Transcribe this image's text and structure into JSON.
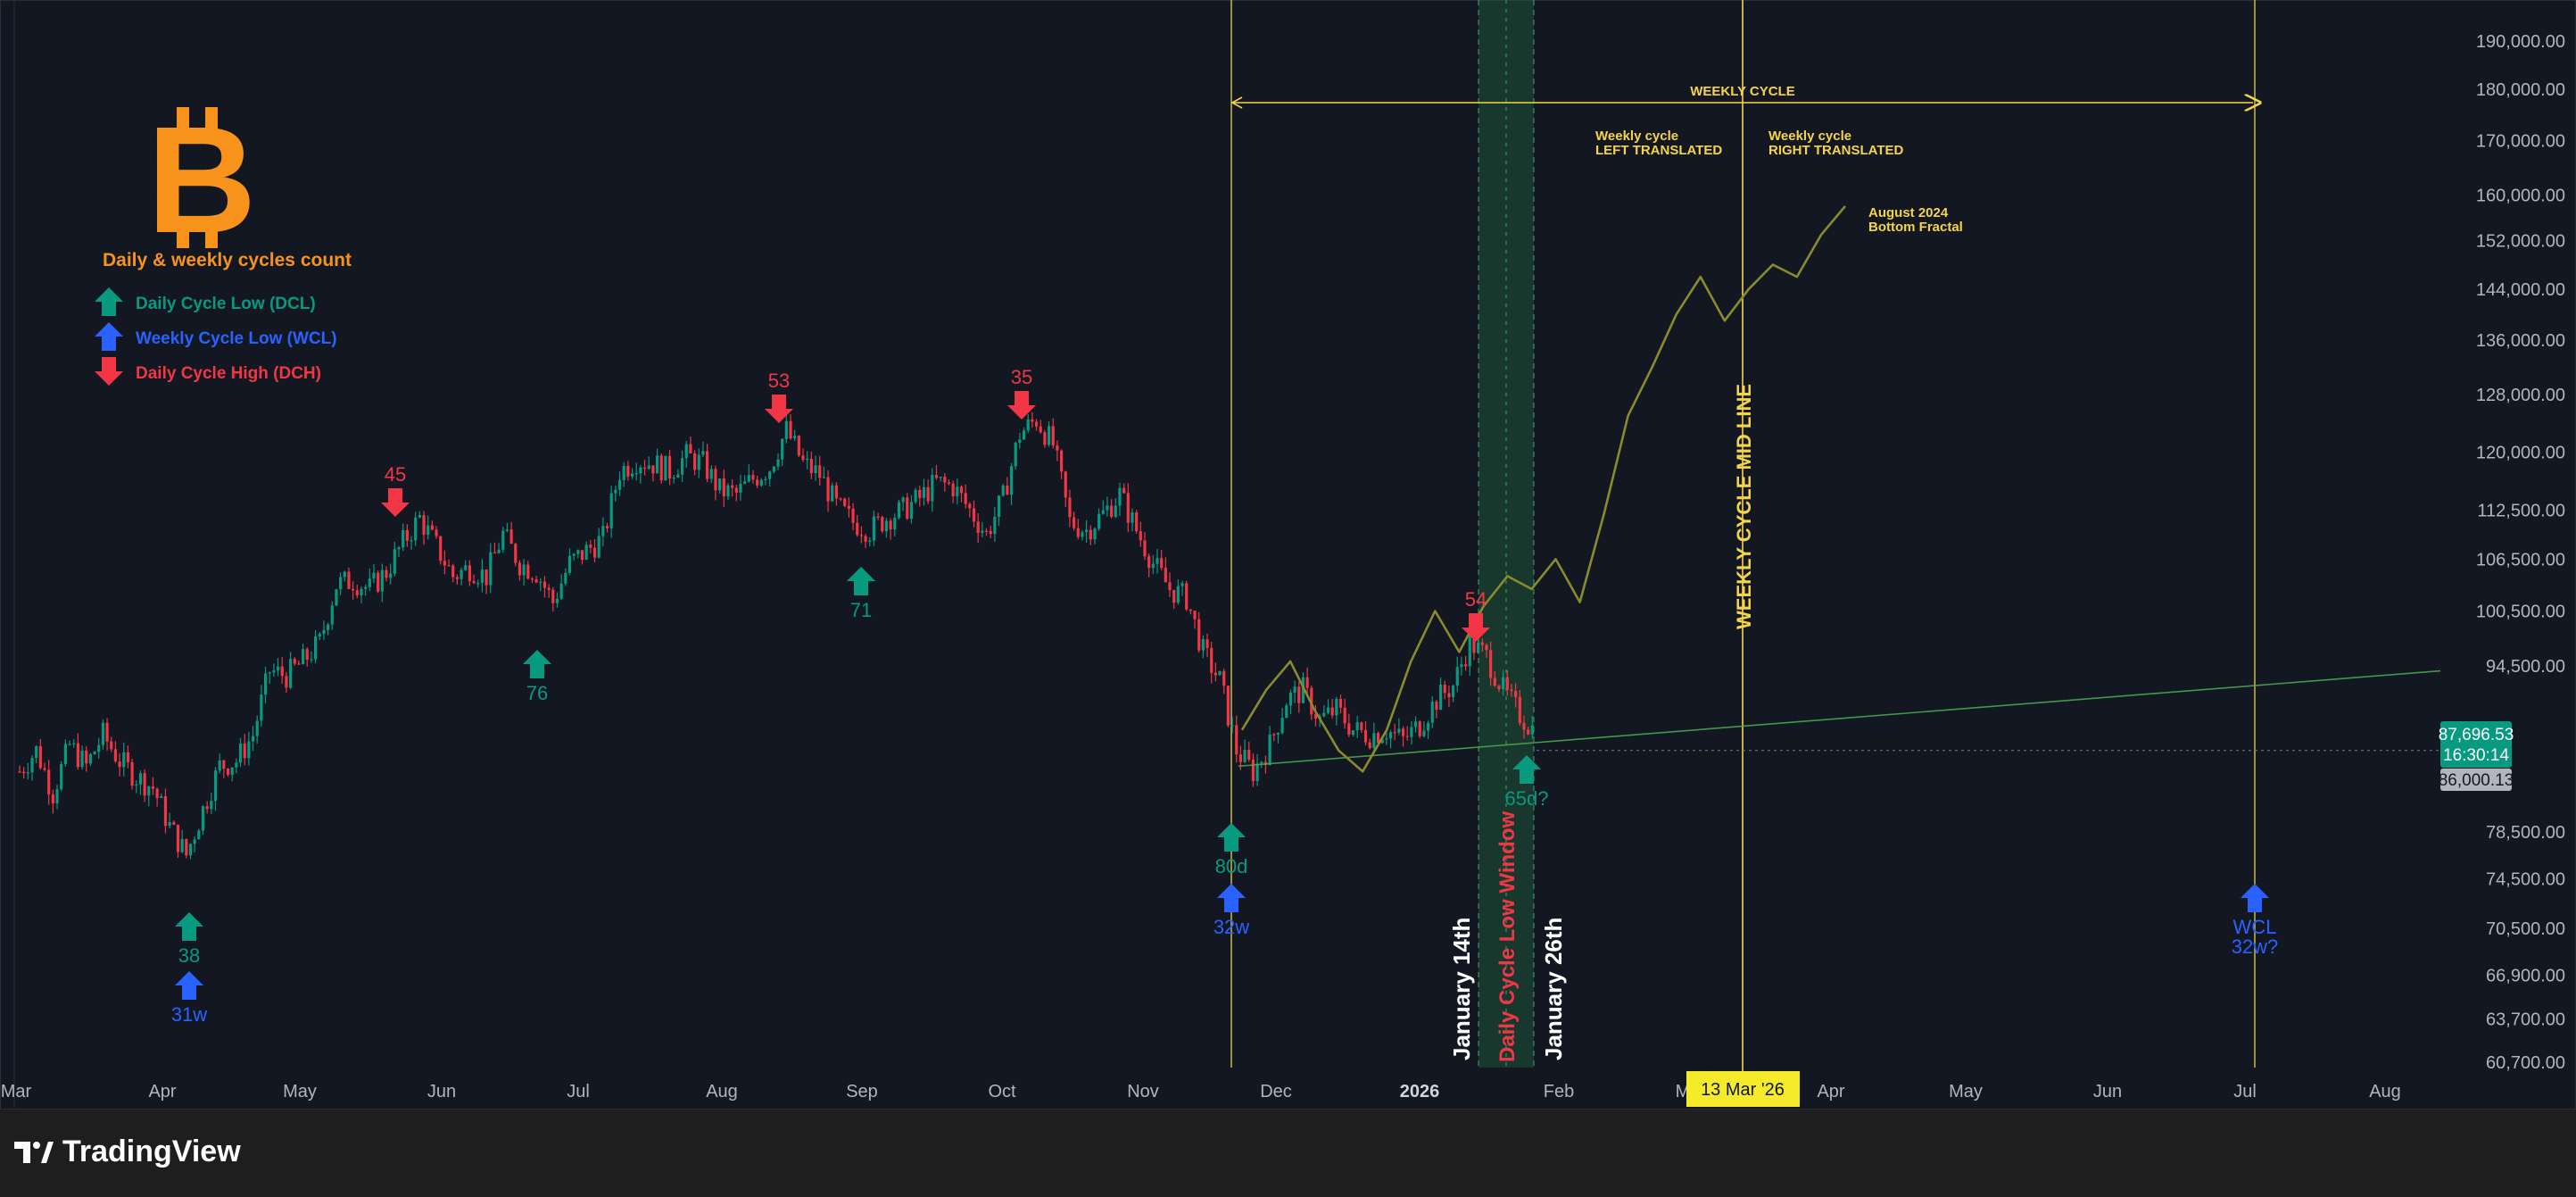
{
  "footer": {
    "brand": "TradingView"
  },
  "logo": {
    "title": "Daily & weekly cycles count",
    "color": "#f7931a"
  },
  "legend": [
    {
      "label": "Daily Cycle Low (DCL)",
      "color": "#089981",
      "dir": "up"
    },
    {
      "label": "Weekly Cycle Low (WCL)",
      "color": "#2962ff",
      "dir": "up"
    },
    {
      "label": "Daily Cycle High (DCH)",
      "color": "#f23645",
      "dir": "down"
    }
  ],
  "price_axis": {
    "labels": [
      "190,000.00",
      "180,000.00",
      "170,000.00",
      "160,000.00",
      "152,000.00",
      "144,000.00",
      "136,000.00",
      "128,000.00",
      "120,000.00",
      "112,500.00",
      "106,500.00",
      "100,500.00",
      "94,500.00",
      "78,500.00",
      "74,500.00",
      "70,500.00",
      "66,900.00",
      "63,700.00",
      "60,700.00"
    ],
    "current_price": "87,696.53",
    "countdown": "16:30:14",
    "level_price": "86,000.13"
  },
  "time_axis": {
    "labels": [
      "Mar",
      "Apr",
      "May",
      "Jun",
      "Jul",
      "Aug",
      "Sep",
      "Oct",
      "Nov",
      "Dec",
      "2026",
      "Feb",
      "M",
      "Apr",
      "May",
      "Jun",
      "Jul",
      "Aug"
    ],
    "highlight": "13 Mar '26"
  },
  "annotations": {
    "weekly_cycle": "WEEKLY CYCLE",
    "left_translated": [
      "Weekly cycle",
      "LEFT TRANSLATED"
    ],
    "right_translated": [
      "Weekly cycle",
      "RIGHT TRANSLATED"
    ],
    "fractal": [
      "August 2024",
      "Bottom Fractal"
    ],
    "midline": "WEEKLY CYCLE MID LINE",
    "window": "Daily Cycle Low Window",
    "jan14": "January 14th",
    "jan26": "January 26th"
  },
  "markers": [
    {
      "type": "dcl",
      "label": "38"
    },
    {
      "type": "wcl",
      "label": "31w"
    },
    {
      "type": "dch",
      "label": "45"
    },
    {
      "type": "dcl",
      "label": "76"
    },
    {
      "type": "dch",
      "label": "53"
    },
    {
      "type": "dcl",
      "label": "71"
    },
    {
      "type": "dch",
      "label": "35"
    },
    {
      "type": "dcl",
      "label": "80d"
    },
    {
      "type": "wcl",
      "label": "32w"
    },
    {
      "type": "dch",
      "label": "54"
    },
    {
      "type": "dcl",
      "label": "65d?"
    },
    {
      "type": "wcl",
      "label": "WCL"
    }
  ],
  "wcl_future_sub": "32w?",
  "colors": {
    "background": "#131722",
    "up": "#089981",
    "down": "#f23645",
    "blue": "#2962ff",
    "yellow": "#f5d547",
    "fractal": "#8a8a2e",
    "trend": "#4caf50"
  },
  "chart_data": {
    "type": "candlestick",
    "title": "",
    "ylim": [
      59000,
      200000
    ],
    "scale": "log",
    "close_series": [
      [
        "Mar",
        84000
      ],
      [
        "Mar",
        86000
      ],
      [
        "Mar",
        82000
      ],
      [
        "Mar",
        86500
      ],
      [
        "Mar",
        84500
      ],
      [
        "Mar",
        87500
      ],
      [
        "Mar",
        85000
      ],
      [
        "Mar",
        83500
      ],
      [
        "Apr",
        82500
      ],
      [
        "Apr",
        79000
      ],
      [
        "Apr",
        76500
      ],
      [
        "Apr",
        80500
      ],
      [
        "Apr",
        84500
      ],
      [
        "Apr",
        85000
      ],
      [
        "Apr",
        87500
      ],
      [
        "Apr",
        94000
      ],
      [
        "Apr",
        93500
      ],
      [
        "May",
        95000
      ],
      [
        "May",
        97000
      ],
      [
        "May",
        103500
      ],
      [
        "May",
        104000
      ],
      [
        "May",
        103000
      ],
      [
        "May",
        105000
      ],
      [
        "May",
        108500
      ],
      [
        "May",
        111500
      ],
      [
        "Jun",
        108000
      ],
      [
        "Jun",
        104500
      ],
      [
        "Jun",
        105500
      ],
      [
        "Jun",
        104500
      ],
      [
        "Jun",
        109500
      ],
      [
        "Jun",
        106000
      ],
      [
        "Jun",
        105000
      ],
      [
        "Jun",
        101500
      ],
      [
        "Jul",
        106000
      ],
      [
        "Jul",
        107500
      ],
      [
        "Jul",
        109000
      ],
      [
        "Jul",
        117500
      ],
      [
        "Jul",
        119000
      ],
      [
        "Jul",
        118500
      ],
      [
        "Jul",
        117500
      ],
      [
        "Jul",
        119500
      ],
      [
        "Jul",
        118500
      ],
      [
        "Aug",
        115000
      ],
      [
        "Aug",
        114500
      ],
      [
        "Aug",
        116500
      ],
      [
        "Aug",
        118000
      ],
      [
        "Aug",
        123000
      ],
      [
        "Aug",
        118500
      ],
      [
        "Aug",
        117000
      ],
      [
        "Aug",
        113000
      ],
      [
        "Aug",
        111000
      ],
      [
        "Sep",
        110000
      ],
      [
        "Sep",
        111500
      ],
      [
        "Sep",
        112500
      ],
      [
        "Sep",
        114000
      ],
      [
        "Sep",
        116000
      ],
      [
        "Sep",
        115500
      ],
      [
        "Sep",
        112500
      ],
      [
        "Sep",
        109500
      ],
      [
        "Oct",
        114000
      ],
      [
        "Oct",
        122500
      ],
      [
        "Oct",
        124500
      ],
      [
        "Oct",
        121000
      ],
      [
        "Oct",
        111000
      ],
      [
        "Oct",
        110000
      ],
      [
        "Oct",
        112000
      ],
      [
        "Oct",
        114500
      ],
      [
        "Nov",
        110000
      ],
      [
        "Nov",
        106000
      ],
      [
        "Nov",
        103000
      ],
      [
        "Nov",
        102000
      ],
      [
        "Nov",
        96000
      ],
      [
        "Nov",
        93000
      ],
      [
        "Nov",
        86000
      ],
      [
        "Nov",
        84000
      ],
      [
        "Dec",
        86500
      ],
      [
        "Dec",
        91000
      ],
      [
        "Dec",
        92000
      ],
      [
        "Dec",
        89000
      ],
      [
        "Dec",
        90000
      ],
      [
        "Dec",
        88000
      ],
      [
        "Dec",
        87500
      ],
      [
        "Dec",
        88000
      ],
      [
        "Dec",
        87000
      ],
      [
        "2026",
        88500
      ],
      [
        "2026",
        91000
      ],
      [
        "2026",
        92500
      ],
      [
        "2026",
        97000
      ],
      [
        "2026",
        95500
      ],
      [
        "2026",
        92000
      ],
      [
        "2026",
        89500
      ],
      [
        "2026",
        87700
      ]
    ],
    "fractal_series": [
      [
        "Dec",
        88000
      ],
      [
        "Dec",
        92000
      ],
      [
        "Dec",
        95000
      ],
      [
        "Dec",
        90000
      ],
      [
        "Dec",
        86000
      ],
      [
        "Dec",
        84000
      ],
      [
        "2026",
        88000
      ],
      [
        "2026",
        95000
      ],
      [
        "2026",
        100500
      ],
      [
        "Feb",
        96000
      ],
      [
        "Feb",
        101000
      ],
      [
        "Feb",
        104500
      ],
      [
        "Feb",
        103000
      ],
      [
        "Feb",
        106500
      ],
      [
        "Feb",
        101500
      ],
      [
        "M",
        112000
      ],
      [
        "M",
        125000
      ],
      [
        "M",
        132000
      ],
      [
        "M",
        140000
      ],
      [
        "M",
        146000
      ],
      [
        "M",
        139000
      ],
      [
        "M",
        144000
      ],
      [
        "Apr",
        148000
      ],
      [
        "Apr",
        146000
      ],
      [
        "Apr",
        153000
      ],
      [
        "Apr",
        158000
      ]
    ],
    "horizontal_level": 86000.13,
    "trendline": [
      [
        "Nov",
        84500
      ],
      [
        "Aug",
        94000
      ]
    ]
  }
}
